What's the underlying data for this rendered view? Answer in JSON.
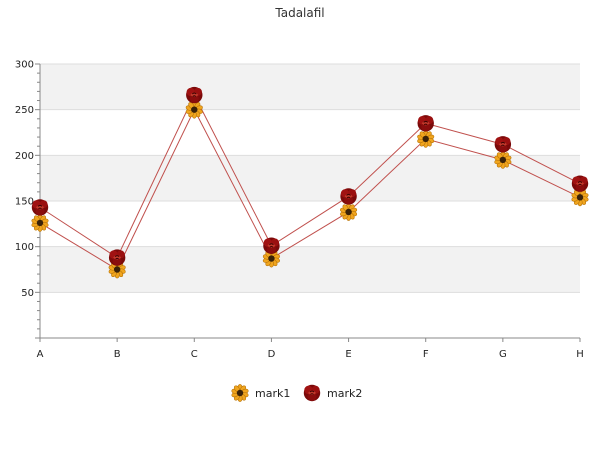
{
  "chart_data": {
    "type": "line",
    "title": "Tadalafil",
    "categories": [
      "A",
      "B",
      "C",
      "D",
      "E",
      "F",
      "G",
      "H"
    ],
    "ylim": [
      0,
      300
    ],
    "yticks": [
      50,
      100,
      150,
      200,
      250,
      300
    ],
    "grid": true,
    "legend_position": "bottom",
    "series": [
      {
        "name": "mark1",
        "values": [
          126,
          75,
          250,
          87,
          138,
          218,
          195,
          154
        ],
        "marker": "sunflower-icon"
      },
      {
        "name": "mark2",
        "values": [
          143,
          88,
          266,
          101,
          155,
          235,
          212,
          169
        ],
        "marker": "rose-icon"
      }
    ],
    "colors": {
      "line": "#c0504d",
      "band": "#f2f2f2",
      "gridline": "#dddddd",
      "axis": "#888888"
    }
  }
}
